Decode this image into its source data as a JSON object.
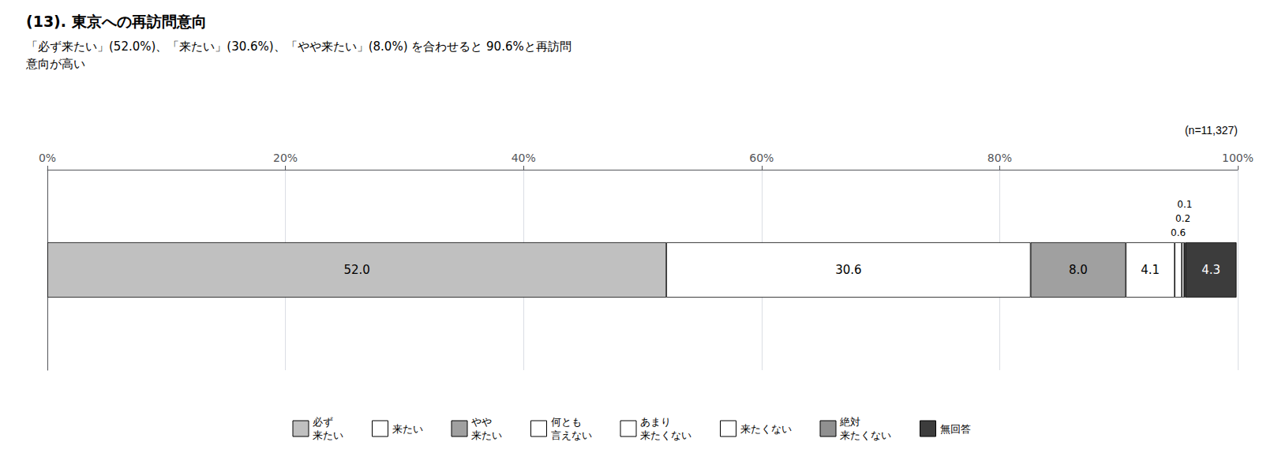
{
  "chart_data": {
    "type": "bar",
    "orientation": "horizontal",
    "stacked": true,
    "title": "(13). 東京への再訪問意向",
    "subtitle": "「必ず来たい」(52.0%)、「来たい」(30.6%)、「やや来たい」(8.0%) を合わせると 90.6%と再訪問\n意向が高い",
    "annotations": [
      "(n=11,327)"
    ],
    "categories": [
      null
    ],
    "series": [
      {
        "name": "必ず\n来たい",
        "color": "#c0c0c0",
        "values": [
          52.0
        ],
        "value_labels": [
          "52.0"
        ]
      },
      {
        "name": "来たい",
        "color": "#ffffff",
        "values": [
          30.6
        ],
        "value_labels": [
          "30.6"
        ]
      },
      {
        "name": "やや\n来たい",
        "color": "#a0a0a0",
        "values": [
          8.0
        ],
        "value_labels": [
          "8.0"
        ]
      },
      {
        "name": "何とも\n言えない",
        "color": "#ffffff",
        "values": [
          4.1
        ],
        "value_labels": [
          "4.1"
        ]
      },
      {
        "name": "あまり\n来たくない",
        "color": "#ffffff",
        "values": [
          0.6
        ],
        "value_labels": [
          "0.6"
        ]
      },
      {
        "name": "来たくない",
        "color": "#ffffff",
        "values": [
          0.2
        ],
        "value_labels": [
          "0.2"
        ]
      },
      {
        "name": "絶対\n来たくない",
        "color": "#909090",
        "values": [
          0.1
        ],
        "value_labels": [
          "0.1"
        ]
      },
      {
        "name": "無回答",
        "color": "#3c3c3c",
        "values": [
          4.3
        ],
        "value_labels": [
          "4.3"
        ]
      }
    ],
    "xlim": [
      0,
      100
    ],
    "xticks": [
      {
        "value": 0,
        "label": "0%"
      },
      {
        "value": 20,
        "label": "20%"
      },
      {
        "value": 40,
        "label": "40%"
      },
      {
        "value": 60,
        "label": "60%"
      },
      {
        "value": 80,
        "label": "80%"
      },
      {
        "value": 100,
        "label": "100%"
      }
    ],
    "grid": true,
    "legend": "bottom",
    "data_labels": true
  }
}
